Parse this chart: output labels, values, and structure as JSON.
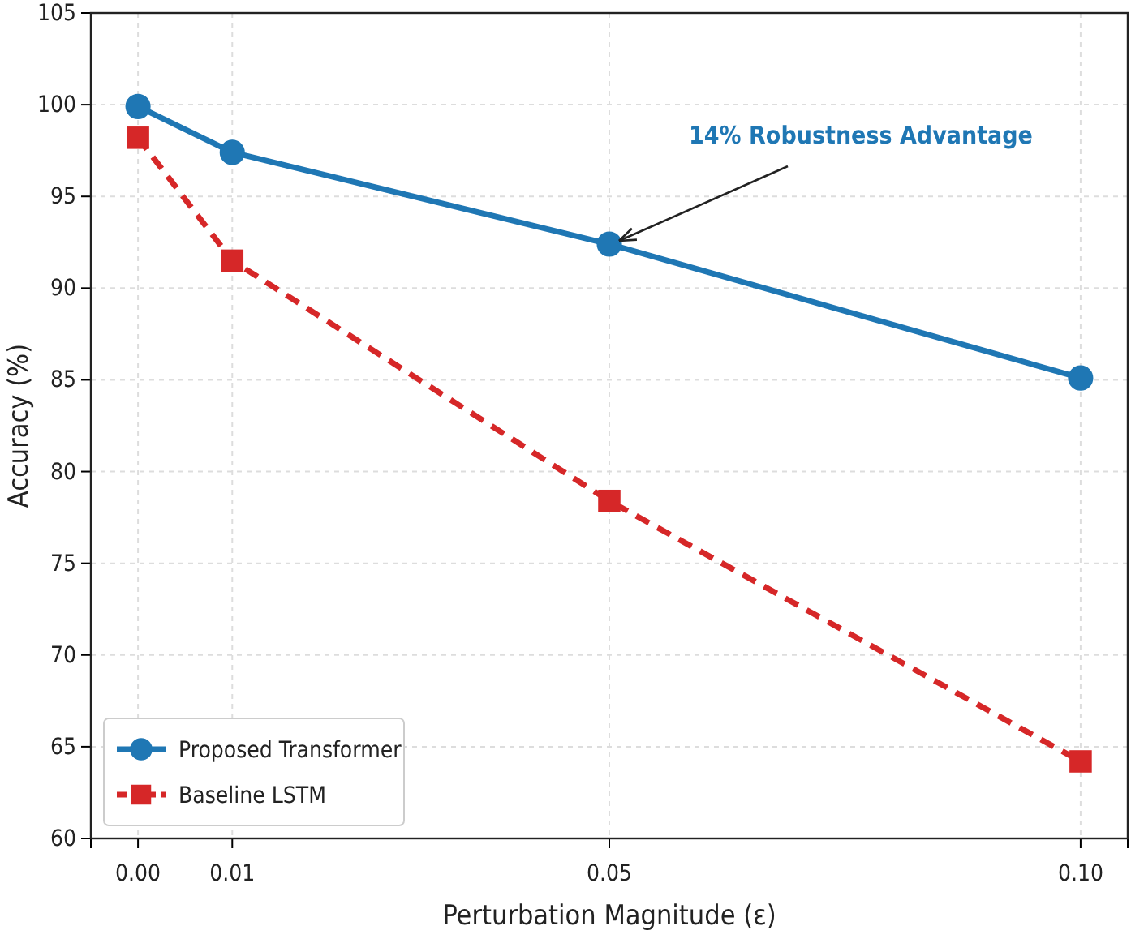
{
  "chart_data": {
    "type": "line",
    "xlabel": "Perturbation Magnitude (ε)",
    "ylabel": "Accuracy (%)",
    "x": [
      0,
      0.01,
      0.05,
      0.1
    ],
    "xlim": [
      -0.005,
      0.105
    ],
    "xticks": [
      {
        "value": 0,
        "label": "0.00"
      },
      {
        "value": 0.01,
        "label": "0.01"
      },
      {
        "value": 0.05,
        "label": "0.05"
      },
      {
        "value": 0.1,
        "label": "0.10"
      }
    ],
    "ylim": [
      60,
      105
    ],
    "yticks": [
      60,
      65,
      70,
      75,
      80,
      85,
      90,
      95,
      100,
      105
    ],
    "series": [
      {
        "name": "Proposed Transformer",
        "color": "#1f77b4",
        "values": [
          99.9,
          97.4,
          92.4,
          85.1
        ],
        "marker": "circle",
        "line_style": "solid"
      },
      {
        "name": "Baseline LSTM",
        "color": "#d62728",
        "values": [
          98.2,
          91.5,
          78.4,
          64.2
        ],
        "marker": "square",
        "line_style": "dashed"
      }
    ],
    "annotations": [
      {
        "text": "14% Robustness Advantage",
        "x": 0.05,
        "y": 92.4
      }
    ],
    "grid": true,
    "legend": "bottom left"
  }
}
